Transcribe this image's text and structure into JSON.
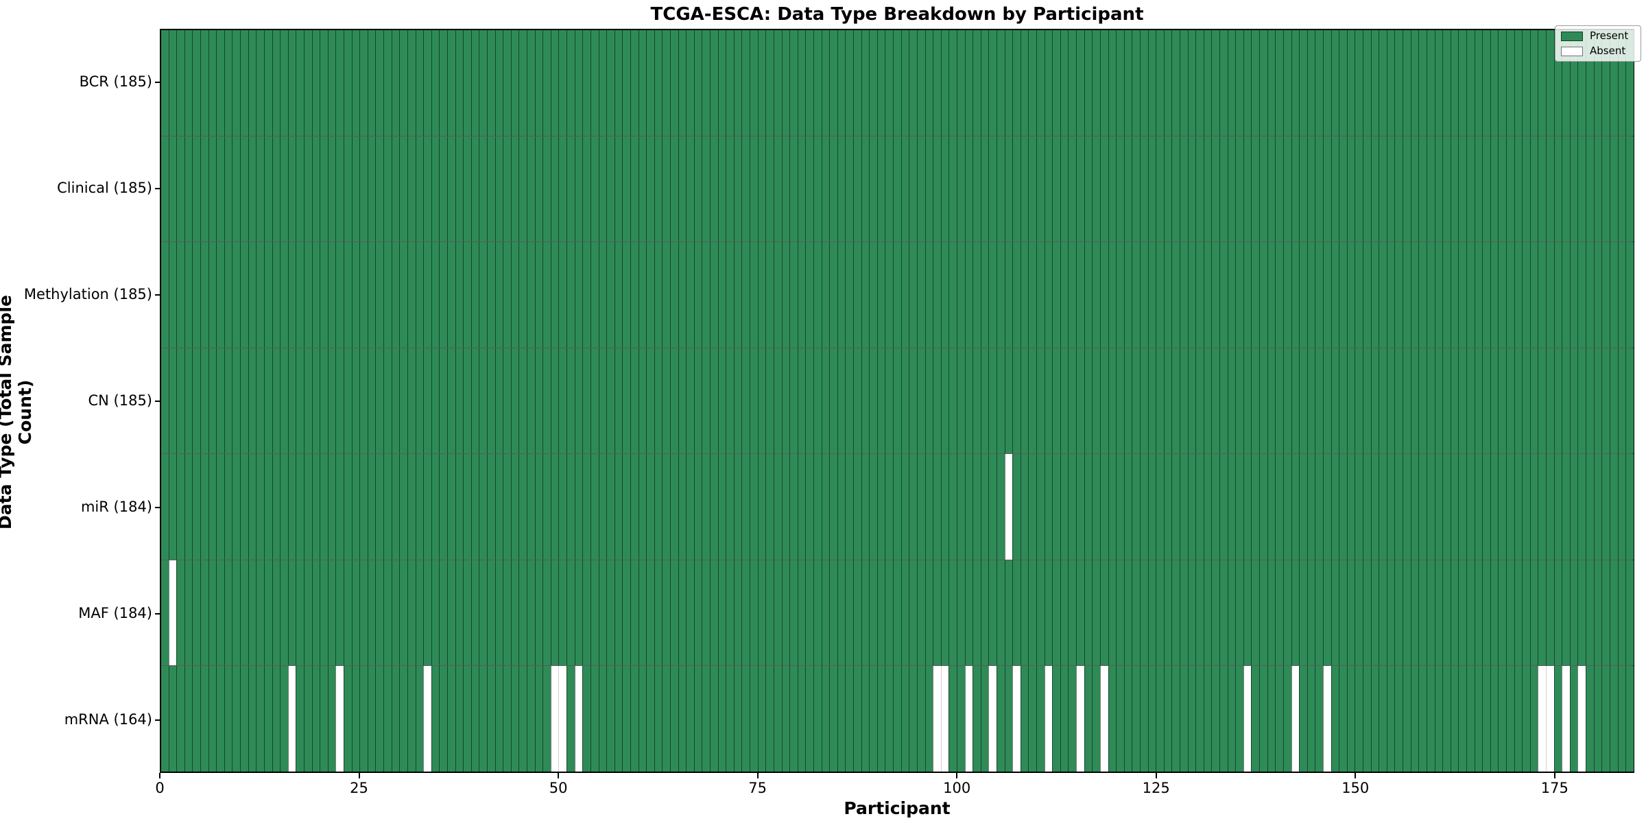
{
  "title": "TCGA-ESCA: Data Type Breakdown by Participant",
  "xlabel": "Participant",
  "ylabel": "Data Type (Total Sample Count)",
  "legend": {
    "present_label": "Present",
    "absent_label": "Absent"
  },
  "colors": {
    "present": "#2e8b57",
    "absent": "#ffffff",
    "edge": "rgba(0,0,0,0.5)",
    "edge_light": "rgba(0,0,0,0.18)"
  },
  "chart_data": {
    "type": "heatmap",
    "title": "TCGA-ESCA: Data Type Breakdown by Participant",
    "xlabel": "Participant",
    "ylabel": "Data Type (Total Sample Count)",
    "legend_entries": [
      "Present",
      "Absent"
    ],
    "legend_position": "upper right",
    "n_participants": 185,
    "xlim": [
      0,
      185
    ],
    "x_ticks": [
      0,
      25,
      50,
      75,
      100,
      125,
      150,
      175
    ],
    "cell_values": "1 = Present (green), 0 = Absent (white); rows list absent participant indices, all others present",
    "rows": [
      {
        "label": "BCR (185)",
        "data_type": "BCR",
        "total_samples": 185,
        "absent_participants": []
      },
      {
        "label": "Clinical (185)",
        "data_type": "Clinical",
        "total_samples": 185,
        "absent_participants": []
      },
      {
        "label": "Methylation (185)",
        "data_type": "Methylation",
        "total_samples": 185,
        "absent_participants": []
      },
      {
        "label": "CN (185)",
        "data_type": "CN",
        "total_samples": 185,
        "absent_participants": []
      },
      {
        "label": "miR (184)",
        "data_type": "miR",
        "total_samples": 184,
        "absent_participants": [
          106
        ]
      },
      {
        "label": "MAF (184)",
        "data_type": "MAF",
        "total_samples": 184,
        "absent_participants": [
          1
        ]
      },
      {
        "label": "mRNA (164)",
        "data_type": "mRNA",
        "total_samples": 164,
        "absent_participants": [
          16,
          22,
          33,
          49,
          50,
          52,
          97,
          98,
          101,
          104,
          107,
          111,
          115,
          118,
          136,
          142,
          146,
          173,
          174,
          176,
          178
        ]
      }
    ]
  }
}
